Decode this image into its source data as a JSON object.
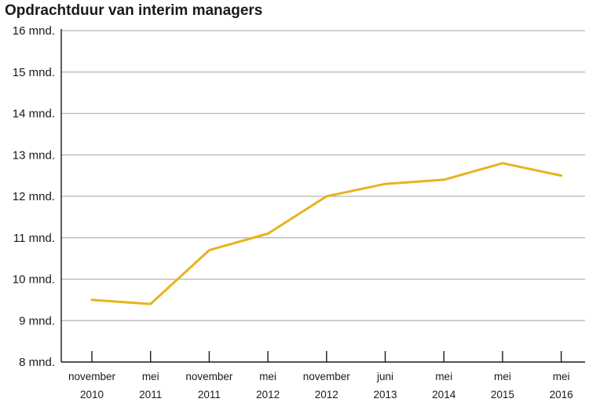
{
  "chart_data": {
    "type": "line",
    "title": "Opdrachtduur van interim managers",
    "xlabel": "",
    "ylabel": "",
    "categories": [
      [
        "november",
        "2010"
      ],
      [
        "mei",
        "2011"
      ],
      [
        "november",
        "2011"
      ],
      [
        "mei",
        "2012"
      ],
      [
        "november",
        "2012"
      ],
      [
        "juni",
        "2013"
      ],
      [
        "mei",
        "2014"
      ],
      [
        "mei",
        "2015"
      ],
      [
        "mei",
        "2016"
      ]
    ],
    "series": [
      {
        "values": [
          9.5,
          9.4,
          10.7,
          11.1,
          12.0,
          12.3,
          12.4,
          12.8,
          12.5
        ]
      }
    ],
    "ylim": [
      8,
      16
    ],
    "yticks": [
      8,
      9,
      10,
      11,
      12,
      13,
      14,
      15,
      16
    ],
    "ytick_labels": [
      "8 mnd.",
      "9 mnd.",
      "10 mnd.",
      "11 mnd.",
      "12 mnd.",
      "13 mnd.",
      "14 mnd.",
      "15 mnd.",
      "16 mnd."
    ],
    "grid": true,
    "line_color": "#E8B31E",
    "grid_color": "#b3b3b3"
  }
}
